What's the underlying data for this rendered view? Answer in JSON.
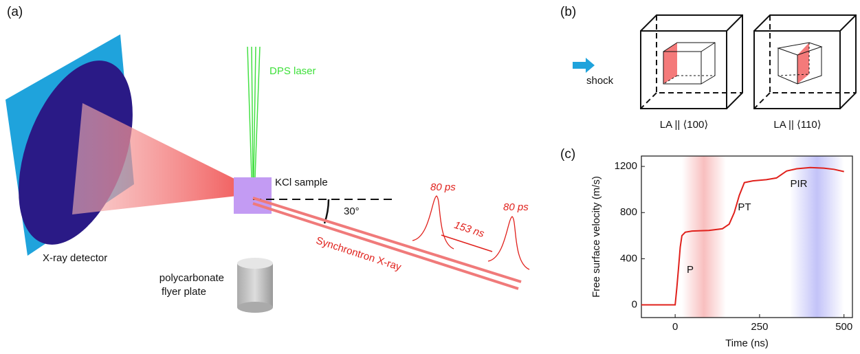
{
  "panel_a": {
    "label": "(a)",
    "laser_label": "DPS laser",
    "sample_label": "KCl sample",
    "angle_label": "30°",
    "pulse_label_1": "80 ps",
    "pulse_label_2": "80 ps",
    "interval_label": "153 ns",
    "beam_label": "Synchrontron X-ray",
    "detector_label": "X-ray detector",
    "flyer_label": [
      "polycarbonate",
      "flyer plate"
    ]
  },
  "panel_b": {
    "label": "(b)",
    "shock_label": "shock",
    "cube_labels": [
      "LA || ⟨100⟩",
      "LA || ⟨110⟩"
    ]
  },
  "panel_c": {
    "label": "(c)"
  },
  "chart_data": {
    "type": "line",
    "xlabel": "Time (ns)",
    "ylabel": "Free surface velocity (m/s)",
    "x": [
      -100,
      0,
      5,
      10,
      15,
      20,
      30,
      50,
      100,
      140,
      160,
      175,
      190,
      205,
      230,
      270,
      300,
      330,
      360,
      400,
      440,
      470,
      500
    ],
    "values": [
      0,
      0,
      150,
      320,
      500,
      600,
      630,
      640,
      645,
      660,
      700,
      800,
      950,
      1060,
      1075,
      1085,
      1100,
      1160,
      1180,
      1190,
      1185,
      1175,
      1155
    ],
    "color": "#e0201b",
    "xlim": [
      -100,
      525
    ],
    "ylim": [
      -110,
      1290
    ],
    "xticks": [
      0,
      250,
      500
    ],
    "yticks": [
      0,
      400,
      800,
      1200
    ],
    "shaded_regions": [
      {
        "range": [
          20,
          150
        ],
        "color": "#f07070"
      },
      {
        "range": [
          340,
          500
        ],
        "color": "#7878f0"
      }
    ],
    "annotations": [
      "P",
      "PT",
      "PIR"
    ]
  }
}
